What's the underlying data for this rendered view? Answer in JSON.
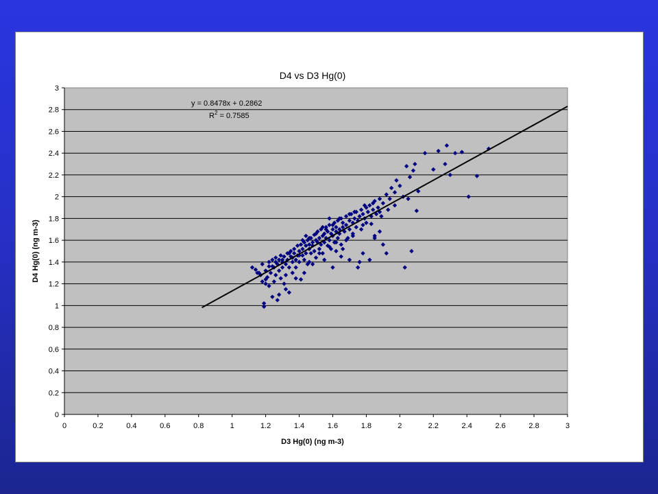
{
  "colors": {
    "background_top": "#2a35e0",
    "background_bottom": "#1c2590",
    "plot_area": "#c0c0c0",
    "marker": "#000080",
    "trendline": "#000000"
  },
  "chart_data": {
    "type": "scatter",
    "title": "D4 vs D3 Hg(0)",
    "xlabel": "D3 Hg(0) (ng m-3)",
    "ylabel": "D4 Hg(0) (ng m-3)",
    "xlim": [
      0,
      3
    ],
    "ylim": [
      0,
      3
    ],
    "x_ticks": [
      "0",
      "0.2",
      "0.4",
      "0.6",
      "0.8",
      "1",
      "1.2",
      "1.4",
      "1.6",
      "1.8",
      "2",
      "2.2",
      "2.4",
      "2.6",
      "2.8",
      "3"
    ],
    "y_ticks": [
      "0",
      "0.2",
      "0.4",
      "0.6",
      "0.8",
      "1",
      "1.2",
      "1.4",
      "1.6",
      "1.8",
      "2",
      "2.2",
      "2.4",
      "2.6",
      "2.8",
      "3"
    ],
    "grid": "horizontal",
    "marker": "diamond",
    "trendline": {
      "slope": 0.8478,
      "intercept": 0.2862,
      "x_range": [
        0.82,
        3.0
      ],
      "equation": "y = 0.8478x + 0.2862",
      "r2_prefix": "R",
      "r2_sup": "2",
      "r2_value": " = 0.7585"
    },
    "series": [
      {
        "points": [
          [
            1.12,
            1.35
          ],
          [
            1.14,
            1.33
          ],
          [
            1.15,
            1.3
          ],
          [
            1.17,
            1.28
          ],
          [
            1.18,
            1.22
          ],
          [
            1.18,
            1.38
          ],
          [
            1.19,
            1.02
          ],
          [
            1.19,
            0.99
          ],
          [
            1.2,
            1.2
          ],
          [
            1.2,
            1.32
          ],
          [
            1.21,
            1.26
          ],
          [
            1.22,
            1.4
          ],
          [
            1.22,
            1.18
          ],
          [
            1.23,
            1.3
          ],
          [
            1.24,
            1.42
          ],
          [
            1.24,
            1.08
          ],
          [
            1.25,
            1.35
          ],
          [
            1.25,
            1.22
          ],
          [
            1.26,
            1.44
          ],
          [
            1.26,
            1.28
          ],
          [
            1.27,
            1.05
          ],
          [
            1.27,
            1.38
          ],
          [
            1.28,
            1.42
          ],
          [
            1.28,
            1.32
          ],
          [
            1.29,
            1.25
          ],
          [
            1.29,
            1.46
          ],
          [
            1.3,
            1.4
          ],
          [
            1.3,
            1.35
          ],
          [
            1.31,
            1.2
          ],
          [
            1.31,
            1.45
          ],
          [
            1.32,
            1.38
          ],
          [
            1.32,
            1.28
          ],
          [
            1.33,
            1.48
          ],
          [
            1.33,
            1.42
          ],
          [
            1.34,
            1.12
          ],
          [
            1.34,
            1.35
          ],
          [
            1.35,
            1.45
          ],
          [
            1.35,
            1.5
          ],
          [
            1.36,
            1.4
          ],
          [
            1.36,
            1.3
          ],
          [
            1.37,
            1.48
          ],
          [
            1.37,
            1.52
          ],
          [
            1.38,
            1.42
          ],
          [
            1.38,
            1.35
          ],
          [
            1.39,
            1.55
          ],
          [
            1.39,
            1.46
          ],
          [
            1.4,
            1.5
          ],
          [
            1.4,
            1.4
          ],
          [
            1.41,
            1.24
          ],
          [
            1.41,
            1.56
          ],
          [
            1.42,
            1.52
          ],
          [
            1.42,
            1.46
          ],
          [
            1.43,
            1.58
          ],
          [
            1.43,
            1.42
          ],
          [
            1.44,
            1.55
          ],
          [
            1.44,
            1.48
          ],
          [
            1.45,
            1.6
          ],
          [
            1.45,
            1.38
          ],
          [
            1.46,
            1.52
          ],
          [
            1.46,
            1.56
          ],
          [
            1.47,
            1.62
          ],
          [
            1.47,
            1.48
          ],
          [
            1.48,
            1.55
          ],
          [
            1.48,
            1.58
          ],
          [
            1.49,
            1.65
          ],
          [
            1.49,
            1.5
          ],
          [
            1.5,
            1.6
          ],
          [
            1.5,
            1.44
          ],
          [
            1.51,
            1.58
          ],
          [
            1.51,
            1.68
          ],
          [
            1.52,
            1.62
          ],
          [
            1.52,
            1.52
          ],
          [
            1.53,
            1.7
          ],
          [
            1.53,
            1.56
          ],
          [
            1.54,
            1.64
          ],
          [
            1.54,
            1.48
          ],
          [
            1.55,
            1.66
          ],
          [
            1.55,
            1.58
          ],
          [
            1.56,
            1.72
          ],
          [
            1.56,
            1.62
          ],
          [
            1.57,
            1.55
          ],
          [
            1.57,
            1.68
          ],
          [
            1.58,
            1.74
          ],
          [
            1.58,
            1.6
          ],
          [
            1.59,
            1.66
          ],
          [
            1.59,
            1.52
          ],
          [
            1.6,
            1.7
          ],
          [
            1.6,
            1.64
          ],
          [
            1.61,
            1.76
          ],
          [
            1.61,
            1.58
          ],
          [
            1.62,
            1.68
          ],
          [
            1.62,
            1.72
          ],
          [
            1.63,
            1.78
          ],
          [
            1.63,
            1.62
          ],
          [
            1.64,
            1.7
          ],
          [
            1.64,
            1.66
          ],
          [
            1.65,
            1.8
          ],
          [
            1.65,
            1.56
          ],
          [
            1.66,
            1.72
          ],
          [
            1.66,
            1.76
          ],
          [
            1.67,
            1.68
          ],
          [
            1.68,
            1.82
          ],
          [
            1.68,
            1.74
          ],
          [
            1.69,
            1.62
          ],
          [
            1.7,
            1.78
          ],
          [
            1.7,
            1.7
          ],
          [
            1.71,
            1.84
          ],
          [
            1.72,
            1.76
          ],
          [
            1.72,
            1.66
          ],
          [
            1.73,
            1.8
          ],
          [
            1.74,
            1.86
          ],
          [
            1.74,
            1.72
          ],
          [
            1.75,
            1.78
          ],
          [
            1.76,
            1.82
          ],
          [
            1.76,
            1.4
          ],
          [
            1.77,
            1.88
          ],
          [
            1.78,
            1.74
          ],
          [
            1.78,
            1.84
          ],
          [
            1.79,
            1.8
          ],
          [
            1.8,
            1.9
          ],
          [
            1.8,
            1.76
          ],
          [
            1.81,
            1.86
          ],
          [
            1.82,
            1.92
          ],
          [
            1.82,
            1.42
          ],
          [
            1.83,
            1.82
          ],
          [
            1.84,
            1.88
          ],
          [
            1.85,
            1.96
          ],
          [
            1.85,
            1.64
          ],
          [
            1.86,
            1.84
          ],
          [
            1.87,
            1.9
          ],
          [
            1.88,
            1.98
          ],
          [
            1.88,
            1.68
          ],
          [
            1.9,
            1.94
          ],
          [
            1.9,
            1.56
          ],
          [
            1.92,
            2.02
          ],
          [
            1.92,
            1.48
          ],
          [
            1.94,
            1.98
          ],
          [
            1.95,
            2.08
          ],
          [
            1.97,
            2.04
          ],
          [
            1.98,
            2.15
          ],
          [
            2.0,
            2.1
          ],
          [
            2.02,
            2.0
          ],
          [
            2.03,
            1.35
          ],
          [
            2.04,
            2.28
          ],
          [
            2.06,
            2.18
          ],
          [
            2.07,
            1.5
          ],
          [
            2.08,
            2.24
          ],
          [
            2.09,
            2.3
          ],
          [
            2.1,
            1.87
          ],
          [
            2.11,
            2.05
          ],
          [
            2.15,
            2.4
          ],
          [
            2.2,
            2.25
          ],
          [
            2.23,
            2.42
          ],
          [
            2.27,
            2.3
          ],
          [
            2.28,
            2.47
          ],
          [
            2.3,
            2.2
          ],
          [
            2.33,
            2.4
          ],
          [
            2.37,
            2.41
          ],
          [
            2.41,
            2.0
          ],
          [
            2.46,
            2.19
          ],
          [
            2.53,
            2.44
          ],
          [
            1.75,
            1.35
          ],
          [
            1.7,
            1.42
          ],
          [
            1.78,
            1.48
          ],
          [
            1.85,
            1.62
          ],
          [
            1.6,
            1.35
          ],
          [
            1.65,
            1.45
          ],
          [
            1.55,
            1.42
          ],
          [
            1.48,
            1.38
          ],
          [
            1.43,
            1.3
          ],
          [
            1.38,
            1.25
          ],
          [
            1.32,
            1.15
          ],
          [
            1.28,
            1.1
          ],
          [
            1.46,
            1.4
          ],
          [
            1.52,
            1.48
          ],
          [
            1.58,
            1.54
          ],
          [
            1.62,
            1.58
          ],
          [
            1.68,
            1.6
          ],
          [
            1.72,
            1.64
          ],
          [
            1.77,
            1.7
          ],
          [
            1.83,
            1.75
          ],
          [
            1.89,
            1.82
          ],
          [
            1.93,
            1.88
          ],
          [
            1.97,
            1.92
          ],
          [
            2.05,
            1.98
          ],
          [
            1.42,
            1.6
          ],
          [
            1.4,
            1.46
          ],
          [
            1.36,
            1.44
          ],
          [
            1.3,
            1.42
          ],
          [
            1.24,
            1.36
          ],
          [
            1.5,
            1.66
          ],
          [
            1.56,
            1.7
          ],
          [
            1.6,
            1.74
          ],
          [
            1.64,
            1.8
          ],
          [
            1.7,
            1.84
          ],
          [
            1.73,
            1.86
          ],
          [
            1.79,
            1.92
          ],
          [
            1.84,
            1.94
          ],
          [
            1.88,
            1.86
          ],
          [
            1.58,
            1.8
          ],
          [
            1.54,
            1.72
          ],
          [
            1.46,
            1.62
          ],
          [
            1.44,
            1.64
          ],
          [
            1.34,
            1.48
          ],
          [
            1.26,
            1.4
          ],
          [
            1.22,
            1.36
          ],
          [
            1.16,
            1.3
          ],
          [
            1.2,
            1.24
          ],
          [
            1.62,
            1.5
          ],
          [
            1.66,
            1.52
          ]
        ]
      }
    ]
  }
}
